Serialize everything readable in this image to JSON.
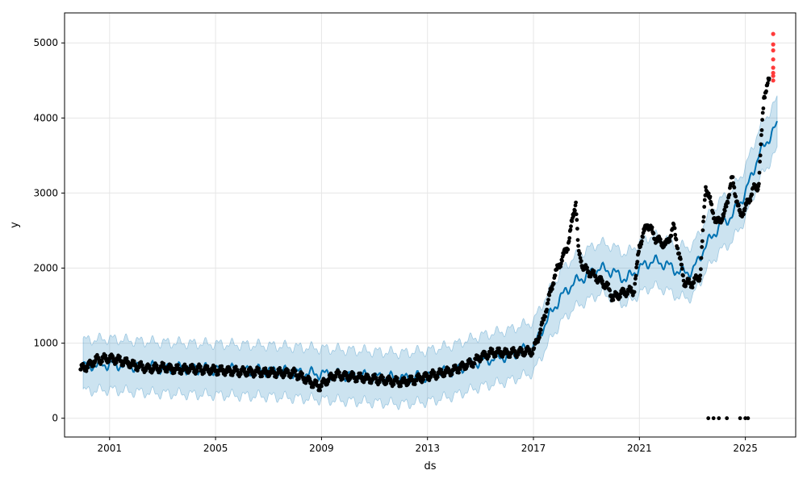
{
  "chart_data": {
    "type": "line",
    "title": "",
    "xlabel": "ds",
    "ylabel": "y",
    "xlim": [
      1999.3,
      2026.9
    ],
    "ylim": [
      -250,
      5400
    ],
    "grid": true,
    "legend": "none",
    "x_ticks": [
      2001,
      2005,
      2009,
      2013,
      2017,
      2021,
      2025
    ],
    "x_tick_labels": [
      "2001",
      "2005",
      "2009",
      "2013",
      "2017",
      "2021",
      "2025"
    ],
    "y_ticks": [
      0,
      1000,
      2000,
      3000,
      4000,
      5000
    ],
    "y_tick_labels": [
      "0",
      "1000",
      "2000",
      "3000",
      "4000",
      "5000"
    ],
    "colors": {
      "forecast_line": "#0072B2",
      "uncertainty_band": "#0072B2",
      "observed": "#000000",
      "anomaly": "#ff3b3b",
      "grid": "#e6e6e6"
    },
    "series": [
      {
        "kind": "forecast",
        "x": [
          2000.0,
          2001.0,
          2002.0,
          2003.0,
          2004.0,
          2005.0,
          2006.0,
          2007.0,
          2008.0,
          2009.0,
          2010.0,
          2011.0,
          2012.0,
          2013.0,
          2014.0,
          2015.0,
          2016.0,
          2017.0,
          2017.5,
          2018.0,
          2018.5,
          2019.0,
          2019.5,
          2020.0,
          2020.5,
          2021.0,
          2021.5,
          2022.0,
          2022.5,
          2023.0,
          2023.5,
          2024.0,
          2024.5,
          2025.0,
          2025.5,
          2026.0,
          2026.2
        ],
        "y": [
          700,
          720,
          690,
          670,
          660,
          650,
          640,
          630,
          610,
          590,
          570,
          550,
          530,
          560,
          640,
          760,
          830,
          950,
          1300,
          1600,
          1800,
          1900,
          2000,
          1950,
          1850,
          2000,
          2100,
          2050,
          1950,
          1950,
          2300,
          2550,
          2700,
          3000,
          3500,
          3800,
          3900
        ],
        "band_halfwidth": [
          340,
          340,
          340,
          340,
          340,
          340,
          340,
          340,
          340,
          340,
          340,
          340,
          340,
          340,
          340,
          340,
          340,
          340,
          340,
          340,
          340,
          340,
          340,
          340,
          340,
          340,
          340,
          340,
          340,
          340,
          340,
          340,
          340,
          340,
          340,
          340,
          340
        ]
      },
      {
        "kind": "observed",
        "x": [
          1999.9,
          2000.2,
          2000.5,
          2001.0,
          2001.5,
          2002.0,
          2002.5,
          2003.0,
          2003.5,
          2004.0,
          2005.0,
          2006.0,
          2007.0,
          2008.0,
          2008.9,
          2009.5,
          2010.0,
          2011.0,
          2012.0,
          2012.5,
          2013.0,
          2014.0,
          2014.8,
          2015.0,
          2015.5,
          2016.0,
          2016.5,
          2017.0,
          2017.3,
          2017.8,
          2018.3,
          2018.6,
          2018.7,
          2018.9,
          2019.3,
          2019.8,
          2020.0,
          2020.4,
          2020.8,
          2021.0,
          2021.3,
          2021.6,
          2022.0,
          2022.3,
          2022.7,
          2023.0,
          2023.3,
          2023.5,
          2023.9,
          2024.2,
          2024.5,
          2024.8,
          2025.0,
          2025.3,
          2025.5,
          2025.7,
          2025.9
        ],
        "y": [
          650,
          700,
          780,
          800,
          760,
          700,
          660,
          680,
          650,
          660,
          640,
          620,
          610,
          600,
          420,
          580,
          560,
          520,
          480,
          510,
          560,
          640,
          760,
          820,
          880,
          870,
          880,
          900,
          1200,
          1900,
          2300,
          2900,
          2200,
          2000,
          1900,
          1750,
          1600,
          1680,
          1700,
          2300,
          2600,
          2400,
          2300,
          2550,
          1800,
          1800,
          1900,
          3100,
          2600,
          2700,
          3200,
          2700,
          2800,
          3050,
          3100,
          4300,
          4500
        ]
      },
      {
        "kind": "observed_zeros",
        "x": [
          2023.6,
          2023.8,
          2024.0,
          2024.3,
          2024.8,
          2025.0,
          2025.1
        ],
        "y": [
          0,
          0,
          0,
          0,
          0,
          0,
          0
        ]
      },
      {
        "kind": "anomaly",
        "x": [
          2026.05,
          2026.05,
          2026.05,
          2026.05,
          2026.05,
          2026.05,
          2026.05,
          2026.05
        ],
        "y": [
          5120,
          4980,
          4900,
          4780,
          4670,
          4600,
          4560,
          4500
        ]
      }
    ]
  }
}
